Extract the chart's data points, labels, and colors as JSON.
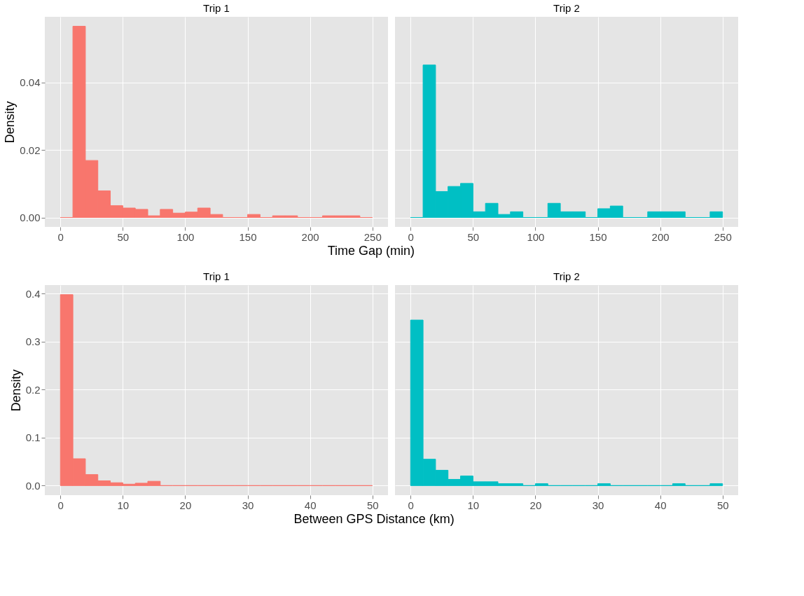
{
  "chart_data": [
    {
      "type": "histogram",
      "title": "Trip 1",
      "ylabel": "Density",
      "xlabel": "Time Gap (min)",
      "color": "#f8766d",
      "grid": true,
      "bins": [
        0,
        10,
        20,
        30,
        40,
        50,
        60,
        70,
        80,
        90,
        100,
        110,
        120,
        130,
        140,
        150,
        160,
        170,
        180,
        190,
        200,
        210,
        220,
        230,
        240,
        250
      ],
      "values": [
        0,
        0.0567,
        0.0169,
        0.0079,
        0.0035,
        0.0028,
        0.0024,
        0.0005,
        0.0024,
        0.0013,
        0.0016,
        0.0028,
        0.0009,
        0,
        0,
        0.0009,
        0,
        0.0005,
        0.0005,
        0,
        0,
        0.0005,
        0.0005,
        0.0005,
        0
      ],
      "xlim": [
        -12.5,
        262.5
      ],
      "ylim": [
        -0.0028,
        0.0595
      ],
      "xticks": [
        0,
        50,
        100,
        150,
        200,
        250
      ],
      "yticks": [
        {
          "value": 0,
          "label": "0.00"
        },
        {
          "value": 0.02,
          "label": "0.02"
        },
        {
          "value": 0.04,
          "label": "0.04"
        }
      ]
    },
    {
      "type": "histogram",
      "title": "Trip 2",
      "color": "#00bfc4",
      "grid": true,
      "tick_labels": "x",
      "bins": [
        0,
        10,
        20,
        30,
        40,
        50,
        60,
        70,
        80,
        90,
        100,
        110,
        120,
        130,
        140,
        150,
        160,
        170,
        180,
        190,
        200,
        210,
        220,
        230,
        240,
        250
      ],
      "values": [
        0,
        0.0452,
        0.0077,
        0.0092,
        0.0101,
        0.0017,
        0.0042,
        0.0009,
        0.0017,
        0,
        0,
        0.0042,
        0.0017,
        0.0017,
        0,
        0.0026,
        0.0034,
        0,
        0,
        0.0017,
        0.0017,
        0.0017,
        0,
        0,
        0.0017
      ],
      "xlim": [
        -12.5,
        262.5
      ],
      "ylim": [
        -0.0028,
        0.0595
      ],
      "xticks": [
        0,
        50,
        100,
        150,
        200,
        250
      ],
      "yticks": [
        0,
        0.02,
        0.04
      ]
    },
    {
      "type": "histogram",
      "title": "Trip 1",
      "ylabel": "Density",
      "xlabel": "Between GPS Distance (km)",
      "color": "#f8766d",
      "grid": true,
      "bins": [
        0,
        2,
        4,
        6,
        8,
        10,
        12,
        14,
        16,
        18,
        20,
        22,
        24,
        26,
        28,
        30,
        32,
        34,
        36,
        38,
        40,
        42,
        44,
        46,
        48,
        50
      ],
      "values": [
        0.398,
        0.056,
        0.023,
        0.01,
        0.006,
        0.003,
        0.005,
        0.009,
        0,
        0,
        0,
        0,
        0,
        0,
        0,
        0,
        0,
        0,
        0,
        0,
        0,
        0,
        0,
        0,
        0
      ],
      "xlim": [
        -2.5,
        52.5
      ],
      "ylim": [
        -0.0199,
        0.418
      ],
      "xticks": [
        0,
        10,
        20,
        30,
        40,
        50
      ],
      "yticks": [
        {
          "value": 0,
          "label": "0.0"
        },
        {
          "value": 0.1,
          "label": "0.1"
        },
        {
          "value": 0.2,
          "label": "0.2"
        },
        {
          "value": 0.3,
          "label": "0.3"
        },
        {
          "value": 0.4,
          "label": "0.4"
        }
      ]
    },
    {
      "type": "histogram",
      "title": "Trip 2",
      "color": "#00bfc4",
      "grid": true,
      "tick_labels": "x",
      "bins": [
        0,
        2,
        4,
        6,
        8,
        10,
        12,
        14,
        16,
        18,
        20,
        22,
        24,
        26,
        28,
        30,
        32,
        34,
        36,
        38,
        40,
        42,
        44,
        46,
        48,
        50
      ],
      "values": [
        0.345,
        0.055,
        0.032,
        0.013,
        0.02,
        0.008,
        0.008,
        0.004,
        0.004,
        0,
        0.004,
        0,
        0,
        0,
        0,
        0.004,
        0,
        0,
        0,
        0,
        0,
        0.004,
        0,
        0,
        0.004
      ],
      "xlim": [
        -2.5,
        52.5
      ],
      "ylim": [
        -0.0199,
        0.418
      ],
      "xticks": [
        0,
        10,
        20,
        30,
        40,
        50
      ],
      "yticks": [
        0,
        0.1,
        0.2,
        0.3,
        0.4
      ]
    }
  ]
}
